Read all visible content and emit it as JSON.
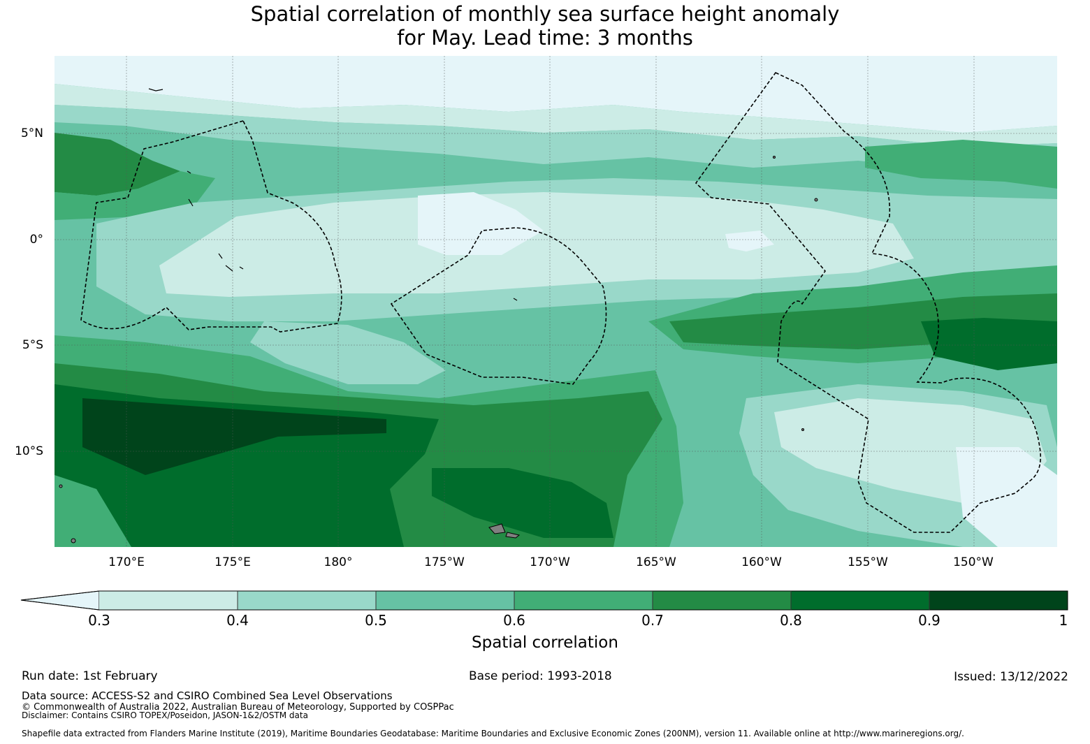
{
  "title": {
    "line1": "Spatial correlation of monthly sea surface height anomaly",
    "line2": "for May. Lead time: 3 months"
  },
  "map": {
    "lat_labels": [
      "5°N",
      "0°",
      "5°S",
      "10°S"
    ],
    "lon_labels": [
      "170°E",
      "175°E",
      "180°",
      "175°W",
      "170°W",
      "165°W",
      "160°W",
      "155°W",
      "150°W"
    ]
  },
  "colorbar": {
    "label": "Spatial correlation",
    "ticks": [
      "0.3",
      "0.4",
      "0.5",
      "0.6",
      "0.7",
      "0.8",
      "0.9",
      "1"
    ],
    "colors": [
      "#e5f5f9",
      "#ccece6",
      "#99d8c9",
      "#66c2a4",
      "#41ae76",
      "#238b45",
      "#006d2c",
      "#00441b"
    ]
  },
  "footer": {
    "run_date": "Run date: 1st February",
    "base_period": "Base period: 1993-2018",
    "issued": "Issued: 13/12/2022",
    "data_source": "Data source: ACCESS-S2 and CSIRO Combined Sea Level Observations",
    "copyright": "© Commonwealth of Australia 2022, Australian Bureau of Meteorology, Supported by COSPPac",
    "disclaimer": "Disclaimer: Contains CSIRO TOPEX/Poseidon, JASON-1&2/OSTM data",
    "shapefile": "Shapefile data extracted from Flanders Marine Institute (2019), Maritime Boundaries Geodatabase: Maritime Boundaries and Exclusive Economic Zones (200NM), version 11. Available online at http://www.marineregions.org/."
  }
}
